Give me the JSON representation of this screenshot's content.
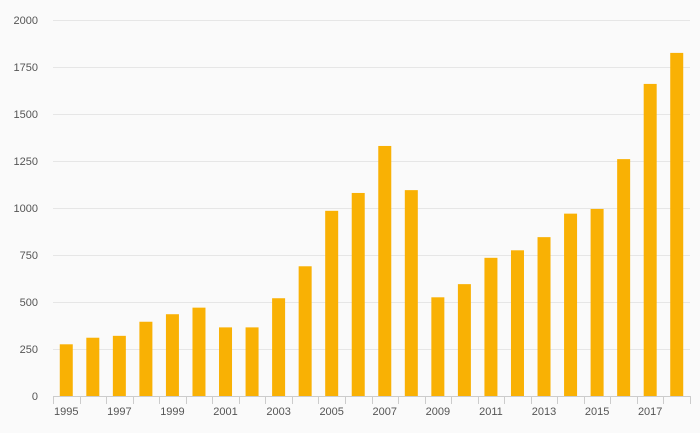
{
  "chart_data": {
    "type": "bar",
    "categories": [
      "1995",
      "1996",
      "1997",
      "1998",
      "1999",
      "2000",
      "2001",
      "2002",
      "2003",
      "2004",
      "2005",
      "2006",
      "2007",
      "2008",
      "2009",
      "2010",
      "2011",
      "2012",
      "2013",
      "2014",
      "2015",
      "2016",
      "2017",
      "2018"
    ],
    "x_tick_labels": [
      "1995",
      "1997",
      "1999",
      "2001",
      "2003",
      "2005",
      "2007",
      "2009",
      "2011",
      "2013",
      "2015",
      "2017"
    ],
    "values": [
      275,
      310,
      320,
      395,
      435,
      470,
      365,
      365,
      520,
      690,
      985,
      1080,
      1330,
      1095,
      525,
      595,
      735,
      775,
      845,
      970,
      995,
      1260,
      1660,
      1825
    ],
    "title": "",
    "xlabel": "",
    "ylabel": "",
    "ylim": [
      0,
      2000
    ],
    "yticks": [
      0,
      250,
      500,
      750,
      1000,
      1250,
      1500,
      1750,
      2000
    ],
    "grid": true,
    "legend": "none",
    "bar_color": "#f9b104"
  }
}
